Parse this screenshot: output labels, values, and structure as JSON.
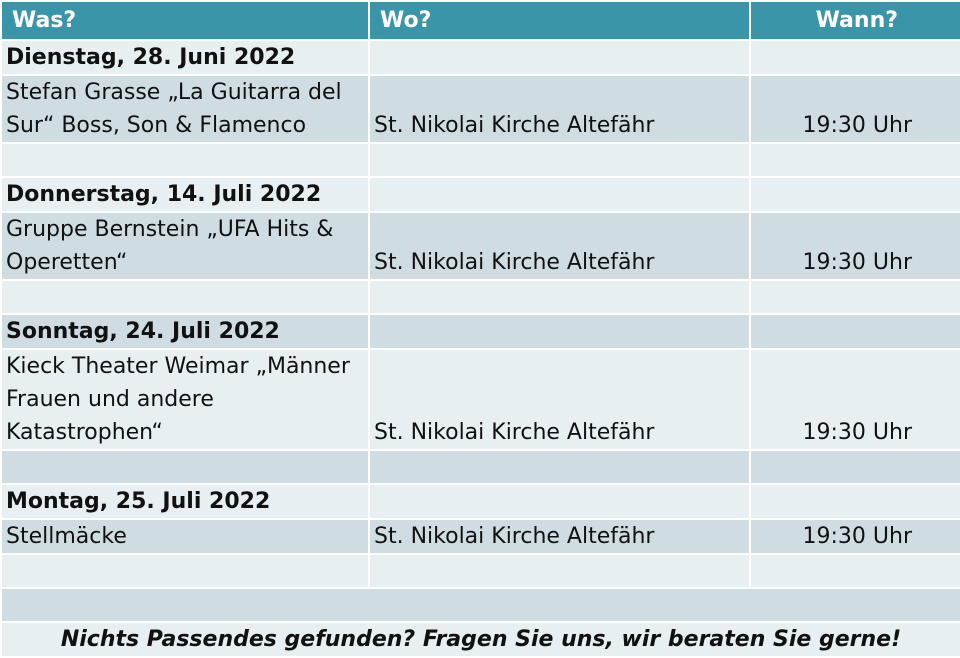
{
  "header": {
    "was": "Was?",
    "wo": "Wo?",
    "wann": "Wann?"
  },
  "events": [
    {
      "date": "Dienstag, 28. Juni 2022",
      "title_lines": [
        "Stefan Grasse „La Guitarra del",
        "Sur“ Boss, Son & Flamenco"
      ],
      "location": "St. Nikolai Kirche Altefähr",
      "time": "19:30 Uhr"
    },
    {
      "date": "Donnerstag, 14. Juli 2022",
      "title_lines": [
        "Gruppe Bernstein „UFA Hits &",
        "Operetten“"
      ],
      "location": "St. Nikolai Kirche Altefähr",
      "time": "19:30 Uhr"
    },
    {
      "date": "Sonntag, 24. Juli 2022",
      "title_lines": [
        "Kieck Theater Weimar „Männer",
        "Frauen und andere",
        "Katastrophen“"
      ],
      "location": "St. Nikolai Kirche Altefähr",
      "time": "19:30 Uhr"
    },
    {
      "date": "Montag, 25. Juli 2022",
      "title_lines": [
        "Stellmäcke"
      ],
      "location": "St. Nikolai Kirche Altefähr",
      "time": "19:30 Uhr"
    }
  ],
  "footer": "Nichts Passendes gefunden? Fragen Sie uns, wir beraten Sie gerne!",
  "colors": {
    "header_bg": "#3b95a8",
    "row_shade": "#cfdde3",
    "row_light": "#e8eff2"
  }
}
